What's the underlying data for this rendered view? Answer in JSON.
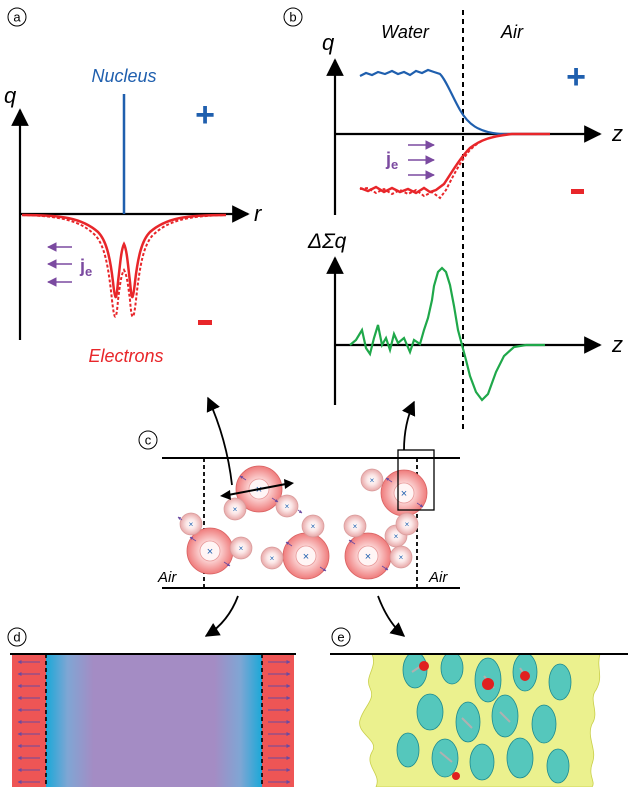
{
  "panels": {
    "a": {
      "letter": "a",
      "y_label": "q",
      "x_label": "r",
      "nucleus_label": "Nucleus",
      "electrons_label": "Electrons",
      "plus_sign": "+",
      "minus_sign": "-",
      "current_main": "j",
      "current_sub": "e"
    },
    "b": {
      "letter": "b",
      "water_label": "Water",
      "air_label": "Air",
      "top_y_label": "q",
      "top_x_label": "z",
      "plus_sign": "+",
      "minus_sign": "-",
      "current_main": "j",
      "current_sub": "e",
      "bottom_y_label": "ΔΣq",
      "bottom_x_label": "z"
    },
    "c": {
      "letter": "c",
      "air_left": "Air",
      "air_right": "Air"
    },
    "d": {
      "letter": "d"
    },
    "e": {
      "letter": "e"
    }
  },
  "colors": {
    "nucleus_blue": "#1f5fae",
    "electron_red": "#e8262a",
    "current_purple": "#7b4aa0",
    "interface_green": "#1fa84a",
    "slab_purple": "#a48cc4",
    "slab_cyan": "#1aa8d8",
    "slab_red": "#ee5555",
    "iso_yellow": "#e8ef7a",
    "iso_cyan": "#3bbfc4"
  }
}
